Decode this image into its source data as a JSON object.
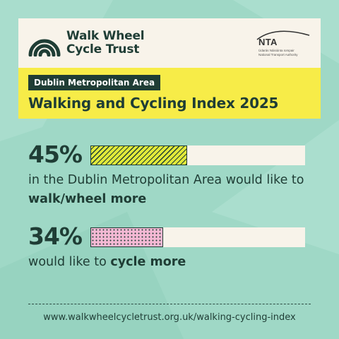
{
  "brand": {
    "logo_line1": "Walk Wheel",
    "logo_line2": "Cycle Trust",
    "partner_title": "NTA",
    "partner_sub_irish": "Údarás Náisiúnta Iompair",
    "partner_sub_english": "National Transport Authority"
  },
  "header": {
    "area": "Dublin Metropolitan Area",
    "title": "Walking and Cycling Index 2025"
  },
  "stats": [
    {
      "value": "45%",
      "fill_fraction": 0.45,
      "desc_plain": "in the Dublin Metropolitan Area would like to ",
      "desc_bold": "walk/wheel more"
    },
    {
      "value": "34%",
      "fill_fraction": 0.34,
      "desc_plain": "would like to ",
      "desc_bold": "cycle more"
    }
  ],
  "footer": {
    "url": "www.walkwheelcycletrust.org.uk/walking-cycling-index"
  },
  "colors": {
    "background": "#9fd8c6",
    "dark_green": "#1f3d35",
    "cream": "#f8f3ea",
    "yellow": "#f7ec48",
    "walk_fill": "#e2ea3a",
    "cycle_fill": "#f3b8d3"
  }
}
